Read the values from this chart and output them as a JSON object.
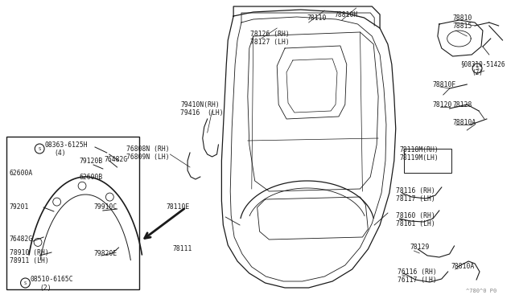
{
  "bg_color": "#ffffff",
  "text_color": "#000000",
  "watermark": "^780^0 P0",
  "fig_w": 6.4,
  "fig_h": 3.72,
  "xlim": [
    0,
    640
  ],
  "ylim": [
    0,
    372
  ]
}
